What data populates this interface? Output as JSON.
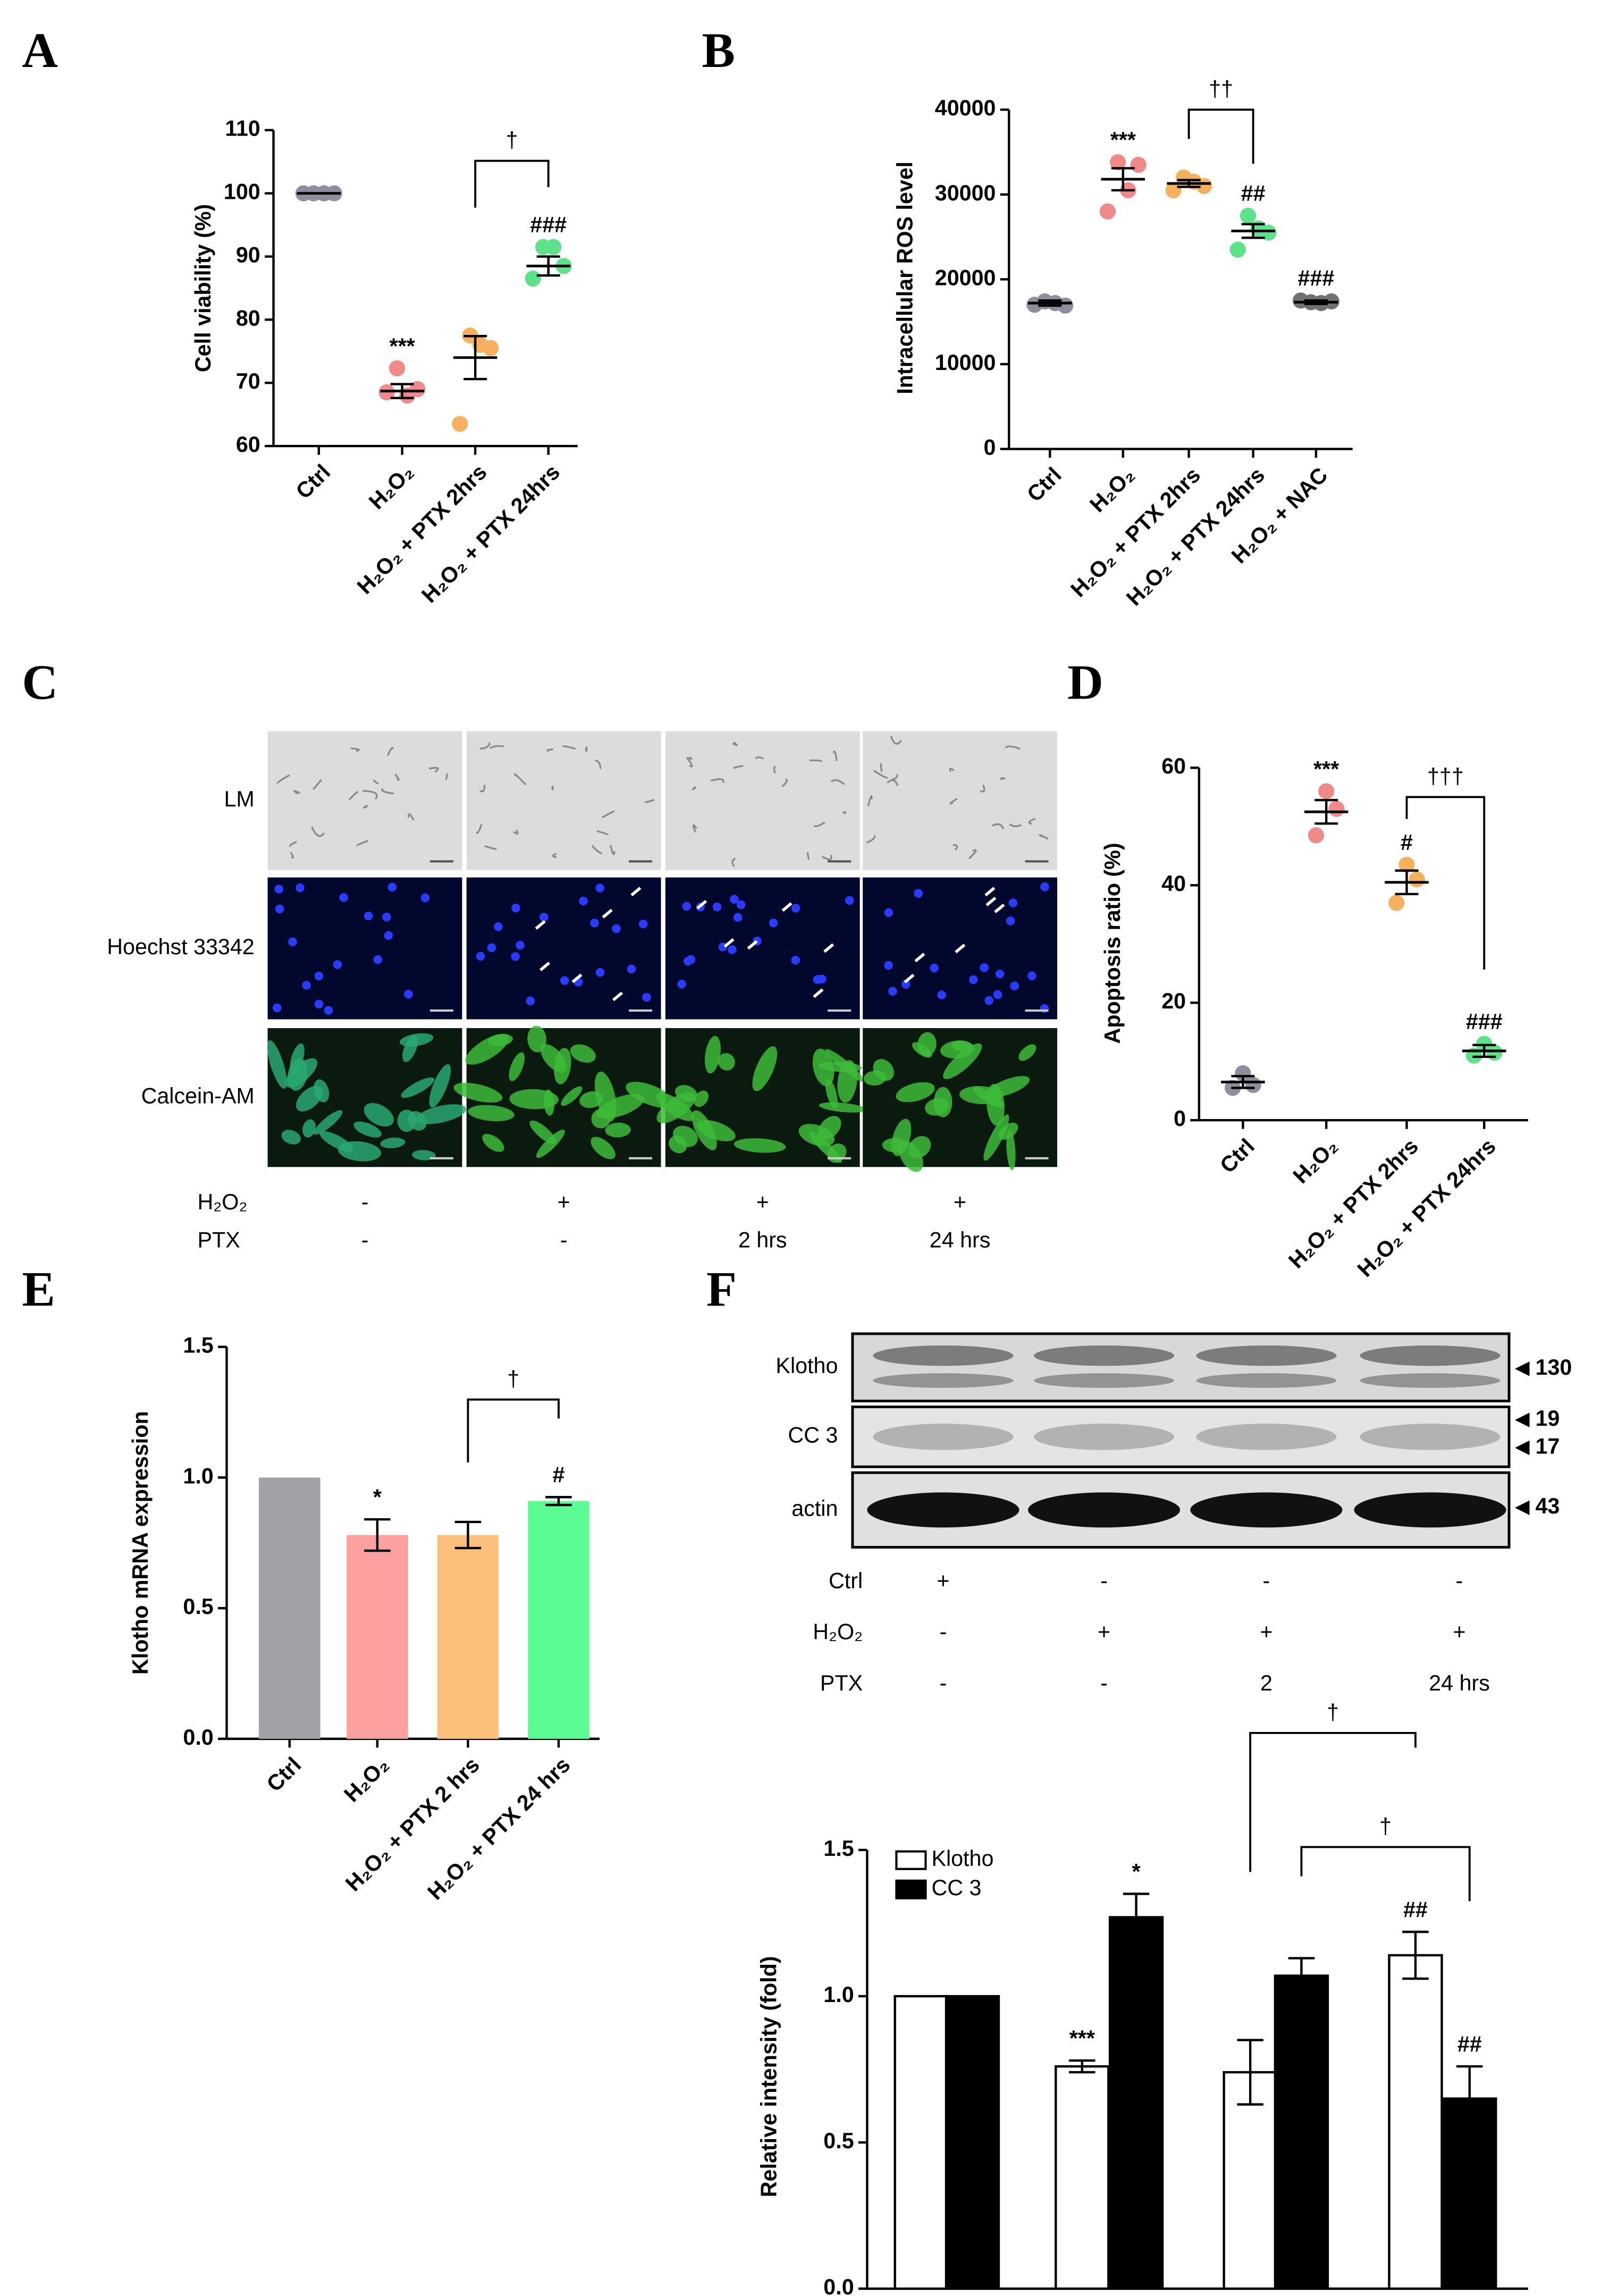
{
  "chart_data": [
    {
      "type": "dot",
      "panel_label": "A",
      "y_label": "Cell viability (%)",
      "categories": [
        "Ctrl",
        "H₂O₂",
        "H₂O₂ + PTX 2hrs",
        "H₂O₂ + PTX 24hrs"
      ],
      "groups": [
        {
          "color": "#8e8e9c",
          "points": [
            100,
            100,
            100,
            100
          ],
          "mean": 100,
          "sem": 0
        },
        {
          "color": "#f08a8a",
          "points": [
            68.5,
            72.3,
            68,
            69
          ],
          "mean": 68.7,
          "sem": 1.1
        },
        {
          "color": "#f5b060",
          "points": [
            63.5,
            77.5,
            76,
            75.5
          ],
          "mean": 74,
          "sem": 3.4
        },
        {
          "color": "#5fe08a",
          "points": [
            86.5,
            91.5,
            91.5,
            88.5
          ],
          "mean": 88.5,
          "sem": 1.5
        }
      ],
      "significance": [
        null,
        "***",
        null,
        "###"
      ],
      "brackets": [
        "†"
      ],
      "ylim": [
        60,
        110
      ],
      "yticks": [
        60,
        70,
        80,
        90,
        100,
        110
      ]
    },
    {
      "type": "dot",
      "panel_label": "B",
      "y_label": "Intracellular ROS level",
      "categories": [
        "Ctrl",
        "H₂O₂",
        "H₂O₂ + PTX 2hrs",
        "H₂O₂ + PTX 24hrs",
        "H₂O₂ + NAC"
      ],
      "groups": [
        {
          "color": "#8e8e9c",
          "points": [
            17000,
            17400,
            17200,
            16900
          ],
          "mean": 17200,
          "sem": 300
        },
        {
          "color": "#f08a8a",
          "points": [
            28000,
            33800,
            30500,
            33500
          ],
          "mean": 31800,
          "sem": 1300
        },
        {
          "color": "#f5b060",
          "points": [
            30500,
            32000,
            31500,
            31000
          ],
          "mean": 31300,
          "sem": 400
        },
        {
          "color": "#5fe08a",
          "points": [
            23500,
            27500,
            26000,
            25500
          ],
          "mean": 25700,
          "sem": 800
        },
        {
          "color": "#707070",
          "points": [
            17500,
            17300,
            17200,
            17400
          ],
          "mean": 17300,
          "sem": 200
        }
      ],
      "significance": [
        null,
        "***",
        null,
        "##",
        "###"
      ],
      "brackets": [
        "††"
      ],
      "ylim": [
        0,
        40000
      ],
      "yticks": [
        0,
        10000,
        20000,
        30000,
        40000
      ]
    },
    {
      "type": "dot",
      "panel_label": "D",
      "y_label": "Apoptosis ratio (%)",
      "categories": [
        "Ctrl",
        "H₂O₂",
        "H₂O₂ + PTX 2hrs",
        "H₂O₂ + PTX 24hrs"
      ],
      "groups": [
        {
          "color": "#8e8e9c",
          "points": [
            5.5,
            8,
            6
          ],
          "mean": 6.5,
          "sem": 1
        },
        {
          "color": "#f08a8a",
          "points": [
            48.5,
            56,
            53
          ],
          "mean": 52.5,
          "sem": 2
        },
        {
          "color": "#f5b060",
          "points": [
            37,
            43.5,
            41
          ],
          "mean": 40.5,
          "sem": 2
        },
        {
          "color": "#5fe08a",
          "points": [
            11,
            13,
            11.5
          ],
          "mean": 11.8,
          "sem": 1
        }
      ],
      "significance": [
        null,
        "***",
        "#",
        "###"
      ],
      "brackets": [
        "†††"
      ],
      "ylim": [
        0,
        60
      ],
      "yticks": [
        0,
        20,
        40,
        60
      ]
    },
    {
      "type": "bar",
      "panel_label": "E",
      "y_label": "Klotho mRNA expression",
      "categories": [
        "Ctrl",
        "H₂O₂",
        "H₂O₂ + PTX 2 hrs",
        "H₂O₂ + PTX 24 hrs"
      ],
      "values": [
        1.0,
        0.78,
        0.78,
        0.91
      ],
      "errors": [
        null,
        0.06,
        0.05,
        0.015
      ],
      "colors": [
        "#a4a0a8",
        "#fda0a0",
        "#fdc07c",
        "#5cfc94"
      ],
      "significance": [
        null,
        "*",
        null,
        "#"
      ],
      "brackets": [
        "†"
      ],
      "ylim": [
        0,
        1.5
      ],
      "yticks": [
        {
          "value": 0,
          "label": "0.0"
        },
        {
          "value": 0.5,
          "label": "0.5"
        },
        {
          "value": 1,
          "label": "1.0"
        },
        {
          "value": 1.5,
          "label": "1.5"
        }
      ]
    },
    {
      "type": "bar",
      "y_label": "Relative intensity  (fold)",
      "series": [
        {
          "name": "Klotho",
          "color": "#ffffff",
          "values": [
            1.0,
            0.76,
            0.74,
            1.14
          ],
          "errors": [
            null,
            0.02,
            0.11,
            0.08
          ],
          "significance": [
            null,
            "***",
            null,
            "##"
          ]
        },
        {
          "name": "CC 3",
          "color": "#000000",
          "values": [
            1.0,
            1.27,
            1.07,
            0.65
          ],
          "errors": [
            null,
            0.08,
            0.06,
            0.11
          ],
          "significance": [
            null,
            "*",
            null,
            "##"
          ]
        }
      ],
      "brackets": [
        "†",
        "†"
      ],
      "ylim": [
        0,
        1.5
      ],
      "yticks": [
        {
          "value": 0,
          "label": "0.0"
        },
        {
          "value": 0.5,
          "label": "0.5"
        },
        {
          "value": 1,
          "label": "1.0"
        },
        {
          "value": 1.5,
          "label": "1.5"
        }
      ]
    }
  ],
  "panel_c": {
    "panel_label": "C",
    "rows": [
      "LM",
      "Hoechst 33342",
      "Calcein-AM"
    ],
    "conditions": [
      {
        "label": "H₂O₂",
        "cells": [
          "-",
          "+",
          "+",
          "+"
        ]
      },
      {
        "label": "PTX",
        "cells": [
          "-",
          "-",
          "2 hrs",
          "24 hrs"
        ]
      }
    ]
  },
  "panel_f": {
    "panel_label": "F",
    "blots": [
      {
        "label": "Klotho",
        "markers": [
          "130"
        ]
      },
      {
        "label": "CC 3",
        "markers": [
          "19",
          "17"
        ]
      },
      {
        "label": "actin",
        "markers": [
          "43"
        ]
      }
    ],
    "conditions": [
      {
        "label": "Ctrl",
        "cells": [
          "+",
          "-",
          "-",
          "-"
        ]
      },
      {
        "label": "H₂O₂",
        "cells": [
          "-",
          "+",
          "+",
          "+"
        ]
      },
      {
        "label": "PTX",
        "cells": [
          "-",
          "-",
          "2",
          "24 hrs"
        ]
      }
    ]
  }
}
